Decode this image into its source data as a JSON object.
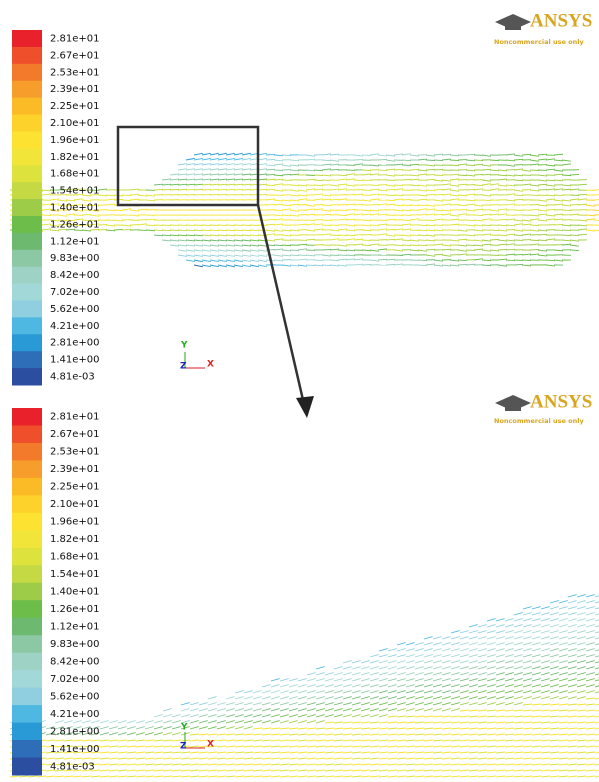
{
  "panels": [
    {
      "colorbar": {
        "labels": [
          "2.81e+01",
          "2.67e+01",
          "2.53e+01",
          "2.39e+01",
          "2.25e+01",
          "2.10e+01",
          "1.96e+01",
          "1.82e+01",
          "1.68e+01",
          "1.54e+01",
          "1.40e+01",
          "1.26e+01",
          "1.12e+01",
          "9.83e+00",
          "8.42e+00",
          "7.02e+00",
          "5.62e+00",
          "4.21e+00",
          "2.81e+00",
          "1.41e+00",
          "4.81e-03"
        ]
      },
      "logo": "ANSYS",
      "watermark": "Noncommercial use only",
      "axes": {
        "x": "X",
        "y": "Y",
        "z": "Z"
      }
    },
    {
      "colorbar": {
        "labels": [
          "2.81e+01",
          "2.67e+01",
          "2.53e+01",
          "2.39e+01",
          "2.25e+01",
          "2.10e+01",
          "1.96e+01",
          "1.82e+01",
          "1.68e+01",
          "1.54e+01",
          "1.40e+01",
          "1.26e+01",
          "1.12e+01",
          "9.83e+00",
          "8.42e+00",
          "7.02e+00",
          "5.62e+00",
          "4.21e+00",
          "2.81e+00",
          "1.41e+00",
          "4.81e-03"
        ]
      },
      "logo": "ANSYS",
      "watermark": "Noncommercial use only",
      "axes": {
        "x": "X",
        "y": "Y",
        "z": "Z"
      }
    }
  ],
  "colors": [
    "#e8212b",
    "#ef4f2a",
    "#f47a2b",
    "#f79d2b",
    "#fbbb26",
    "#fcd22b",
    "#fde232",
    "#f2e53a",
    "#dde23d",
    "#c4d943",
    "#9dcc49",
    "#6cbd4a",
    "#6db96f",
    "#8dc8a4",
    "#9ed2c4",
    "#a3d8d8",
    "#8fcfe0",
    "#4eb8e2",
    "#2a9ad6",
    "#2e6db8",
    "#2c4ea0"
  ]
}
